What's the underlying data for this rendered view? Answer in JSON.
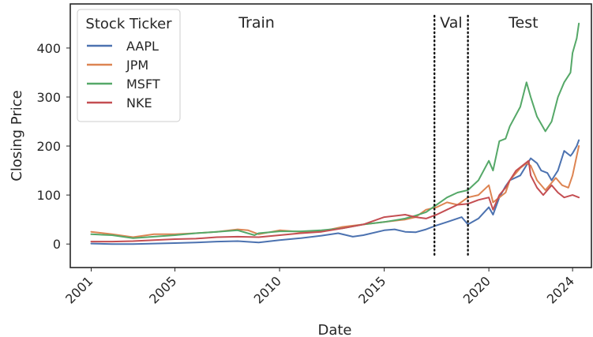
{
  "chart_data": {
    "type": "line",
    "xlabel": "Date",
    "ylabel": "Closing Price",
    "x_ticks": [
      "2001",
      "2005",
      "2010",
      "2015",
      "2020",
      "2024"
    ],
    "y_ticks": [
      0,
      100,
      200,
      300,
      400
    ],
    "xlim": [
      2000.0,
      2024.9
    ],
    "ylim": [
      -48,
      490
    ],
    "grid": false,
    "legend": {
      "title": "Stock Ticker",
      "placement": "upper-left",
      "entries": [
        "AAPL",
        "JPM",
        "MSFT",
        "NKE"
      ]
    },
    "regions": [
      {
        "label": "Train",
        "range": [
          2001,
          2017.4
        ]
      },
      {
        "label": "Val",
        "range": [
          2017.4,
          2019.0
        ]
      },
      {
        "label": "Test",
        "range": [
          2019.0,
          2024.3
        ]
      }
    ],
    "split_lines": [
      2017.4,
      2019.0
    ],
    "series": [
      {
        "name": "AAPL",
        "color": "#4c72b0",
        "x": [
          2001,
          2002,
          2003,
          2004,
          2005,
          2006,
          2007,
          2008,
          2009,
          2010,
          2011,
          2012,
          2012.8,
          2013.5,
          2014,
          2015,
          2015.5,
          2016,
          2016.5,
          2017,
          2017.5,
          2018,
          2018.7,
          2019,
          2019.5,
          2020,
          2020.2,
          2020.5,
          2020.8,
          2021,
          2021.5,
          2022,
          2022.3,
          2022.5,
          2022.8,
          2023,
          2023.3,
          2023.6,
          2023.9,
          2024,
          2024.2,
          2024.3
        ],
        "y": [
          1,
          0,
          0,
          1,
          2,
          3,
          5,
          6,
          3,
          8,
          12,
          17,
          22,
          15,
          18,
          28,
          30,
          25,
          24,
          30,
          38,
          45,
          55,
          40,
          52,
          75,
          60,
          95,
          118,
          130,
          140,
          175,
          165,
          150,
          145,
          130,
          150,
          190,
          180,
          185,
          200,
          212
        ]
      },
      {
        "name": "JPM",
        "color": "#dd8452",
        "x": [
          2001,
          2002,
          2003,
          2004,
          2005,
          2006,
          2007,
          2008,
          2008.5,
          2009,
          2010,
          2011,
          2012,
          2013,
          2014,
          2015,
          2016,
          2016.5,
          2017,
          2017.5,
          2018,
          2018.5,
          2019,
          2019.5,
          2020,
          2020.2,
          2020.5,
          2020.8,
          2021,
          2021.5,
          2021.8,
          2022,
          2022.3,
          2022.7,
          2023,
          2023.2,
          2023.5,
          2023.8,
          2024,
          2024.2,
          2024.3
        ],
        "y": [
          25,
          20,
          14,
          20,
          20,
          22,
          25,
          30,
          28,
          20,
          28,
          25,
          26,
          35,
          40,
          45,
          50,
          55,
          70,
          75,
          85,
          80,
          95,
          100,
          120,
          85,
          95,
          105,
          130,
          155,
          165,
          160,
          130,
          110,
          125,
          135,
          120,
          115,
          140,
          180,
          200
        ]
      },
      {
        "name": "MSFT",
        "color": "#55a868",
        "x": [
          2001,
          2002,
          2003,
          2004,
          2005,
          2006,
          2007,
          2008,
          2008.8,
          2009,
          2010,
          2011,
          2012,
          2013,
          2014,
          2015,
          2016,
          2016.5,
          2017,
          2017.5,
          2018,
          2018.5,
          2019,
          2019.5,
          2020,
          2020.2,
          2020.5,
          2020.8,
          2021,
          2021.5,
          2021.8,
          2022,
          2022.3,
          2022.7,
          2023,
          2023.3,
          2023.6,
          2023.9,
          2024,
          2024.2,
          2024.3
        ],
        "y": [
          20,
          18,
          12,
          15,
          18,
          22,
          25,
          28,
          18,
          22,
          26,
          26,
          28,
          32,
          40,
          45,
          52,
          58,
          65,
          80,
          95,
          105,
          110,
          130,
          170,
          150,
          210,
          215,
          240,
          280,
          330,
          300,
          260,
          230,
          250,
          300,
          330,
          350,
          390,
          420,
          450
        ]
      },
      {
        "name": "NKE",
        "color": "#c44e52",
        "x": [
          2001,
          2002,
          2003,
          2004,
          2005,
          2006,
          2007,
          2008,
          2009,
          2010,
          2011,
          2012,
          2013,
          2014,
          2015,
          2016,
          2016.5,
          2017,
          2017.5,
          2018,
          2018.5,
          2019,
          2019.5,
          2020,
          2020.2,
          2020.5,
          2020.8,
          2021,
          2021.3,
          2021.6,
          2021.9,
          2022,
          2022.3,
          2022.6,
          2023,
          2023.3,
          2023.6,
          2024,
          2024.3
        ],
        "y": [
          5,
          5,
          6,
          8,
          10,
          11,
          14,
          15,
          14,
          18,
          22,
          25,
          32,
          40,
          55,
          60,
          55,
          52,
          60,
          70,
          80,
          82,
          90,
          95,
          70,
          100,
          115,
          130,
          150,
          160,
          170,
          140,
          115,
          100,
          120,
          105,
          95,
          100,
          95
        ]
      }
    ]
  }
}
